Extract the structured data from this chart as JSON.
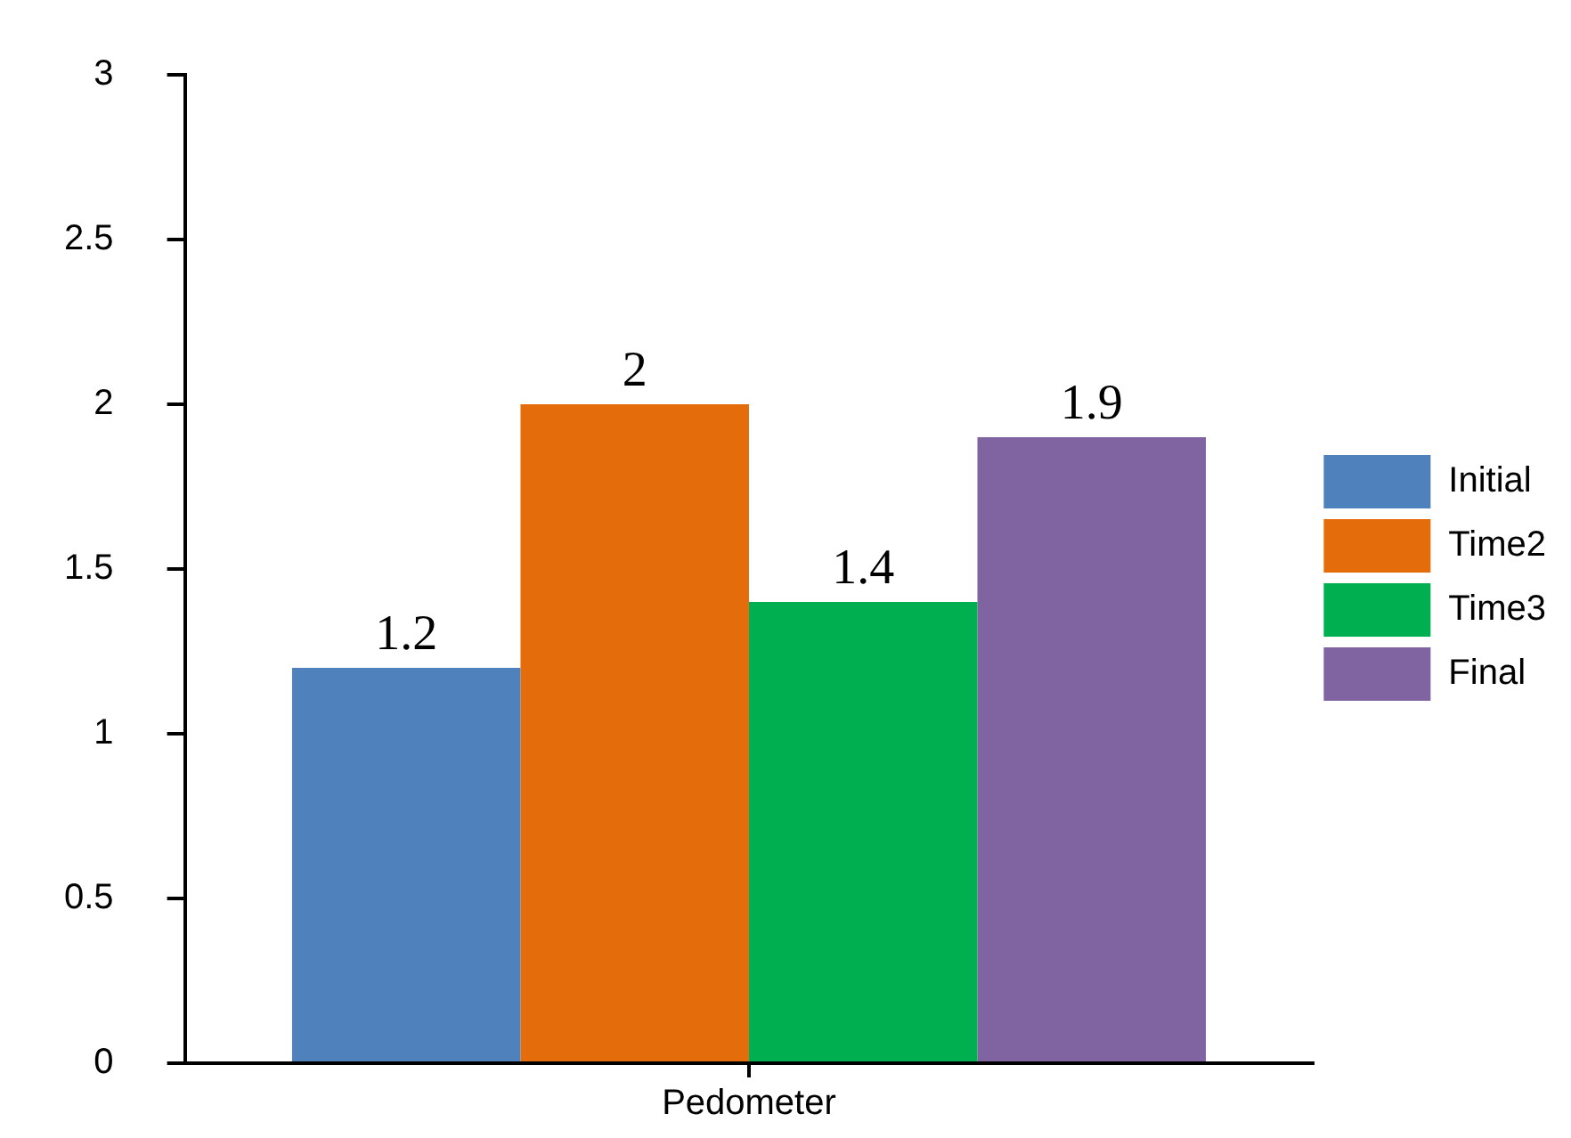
{
  "chart_data": {
    "type": "bar",
    "categories": [
      "Pedometer"
    ],
    "series": [
      {
        "name": "Initial",
        "color": "#4f81bd",
        "values": [
          1.2
        ]
      },
      {
        "name": "Time2",
        "color": "#e46c0a",
        "values": [
          2
        ]
      },
      {
        "name": "Time3",
        "color": "#00b050",
        "values": [
          1.4
        ]
      },
      {
        "name": "Final",
        "color": "#8064a2",
        "values": [
          1.9
        ]
      }
    ],
    "ylim": [
      0,
      3
    ],
    "yticks": [
      0,
      0.5,
      1,
      1.5,
      2,
      2.5,
      3
    ],
    "grid": false,
    "legend": "right",
    "data_labels": true
  }
}
